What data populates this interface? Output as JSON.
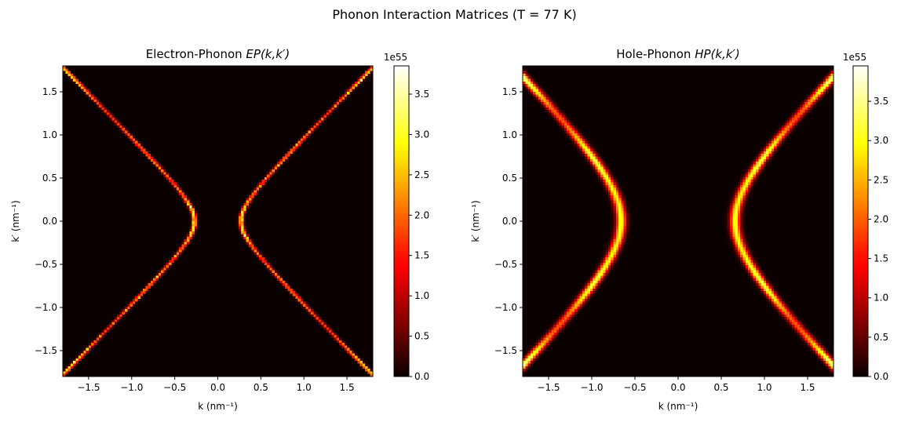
{
  "figure": {
    "suptitle": "Phonon Interaction Matrices (T = 77 K)"
  },
  "colors": {
    "colormap": "hot",
    "colormap_stops": [
      "#0b0000",
      "#6b0000",
      "#cc0000",
      "#ff3300",
      "#ff9900",
      "#ffff00",
      "#ffffff"
    ]
  },
  "chart_data": [
    {
      "type": "heatmap",
      "title": "Electron-Phonon",
      "title_math": "EP(k,k′)",
      "xlabel": "k (nm⁻¹)",
      "ylabel": "k′ (nm⁻¹)",
      "xlim": [
        -1.8,
        1.8
      ],
      "ylim": [
        -1.8,
        1.8
      ],
      "xticks": [
        -1.5,
        -1.0,
        -0.5,
        0.0,
        0.5,
        1.0,
        1.5
      ],
      "xtick_labels": [
        "−1.5",
        "−1.0",
        "−0.5",
        "0.0",
        "0.5",
        "1.0",
        "1.5"
      ],
      "yticks": [
        -1.5,
        -1.0,
        -0.5,
        0.0,
        0.5,
        1.0,
        1.5
      ],
      "ytick_labels": [
        "−1.5",
        "−1.0",
        "−0.5",
        "0.0",
        "0.5",
        "1.0",
        "1.5"
      ],
      "pattern": "hyperbola k^2 - k'^2 = a^2",
      "vertex_k": 0.27,
      "linewidth_k": 0.018,
      "grid_n": 120,
      "colorbar": {
        "range": [
          0.0,
          3.85
        ],
        "ticks": [
          0.0,
          0.5,
          1.0,
          1.5,
          2.0,
          2.5,
          3.0,
          3.5
        ],
        "tick_labels": [
          "0.0",
          "0.5",
          "1.0",
          "1.5",
          "2.0",
          "2.5",
          "3.0",
          "3.5"
        ],
        "scale_label": "1e55"
      }
    },
    {
      "type": "heatmap",
      "title": "Hole-Phonon",
      "title_math": "HP(k,k′)",
      "xlabel": "k (nm⁻¹)",
      "ylabel": "k′ (nm⁻¹)",
      "xlim": [
        -1.8,
        1.8
      ],
      "ylim": [
        -1.8,
        1.8
      ],
      "xticks": [
        -1.5,
        -1.0,
        -0.5,
        0.0,
        0.5,
        1.0,
        1.5
      ],
      "xtick_labels": [
        "−1.5",
        "−1.0",
        "−0.5",
        "0.0",
        "0.5",
        "1.0",
        "1.5"
      ],
      "yticks": [
        -1.5,
        -1.0,
        -0.5,
        0.0,
        0.5,
        1.0,
        1.5
      ],
      "ytick_labels": [
        "−1.5",
        "−1.0",
        "−0.5",
        "0.0",
        "0.5",
        "1.0",
        "1.5"
      ],
      "pattern": "hyperbola k^2 - k'^2 = a^2",
      "vertex_k": 0.66,
      "linewidth_k": 0.04,
      "grid_n": 120,
      "colorbar": {
        "range": [
          0.0,
          3.95
        ],
        "ticks": [
          0.0,
          0.5,
          1.0,
          1.5,
          2.0,
          2.5,
          3.0,
          3.5
        ],
        "tick_labels": [
          "0.0",
          "0.5",
          "1.0",
          "1.5",
          "2.0",
          "2.5",
          "3.0",
          "3.5"
        ],
        "scale_label": "1e55"
      }
    }
  ]
}
